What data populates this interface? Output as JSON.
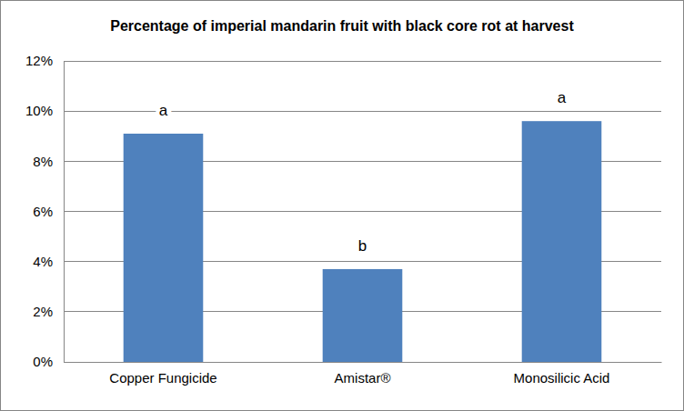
{
  "chart_data": {
    "type": "bar",
    "title": "Percentage of imperial mandarin fruit with black core rot at harvest",
    "categories": [
      "Copper Fungicide",
      "Amistar®",
      "Monosilicic Acid"
    ],
    "values": [
      9.1,
      3.7,
      9.6
    ],
    "annotations": [
      "a",
      "b",
      "a"
    ],
    "color": "#4F81BD",
    "ylim": [
      0,
      12
    ],
    "yticks": [
      {
        "value": 0,
        "label": "0%"
      },
      {
        "value": 2,
        "label": "2%"
      },
      {
        "value": 4,
        "label": "4%"
      },
      {
        "value": 6,
        "label": "6%"
      },
      {
        "value": 8,
        "label": "8%"
      },
      {
        "value": 10,
        "label": "10%"
      },
      {
        "value": 12,
        "label": "12%"
      }
    ],
    "grid": true
  }
}
